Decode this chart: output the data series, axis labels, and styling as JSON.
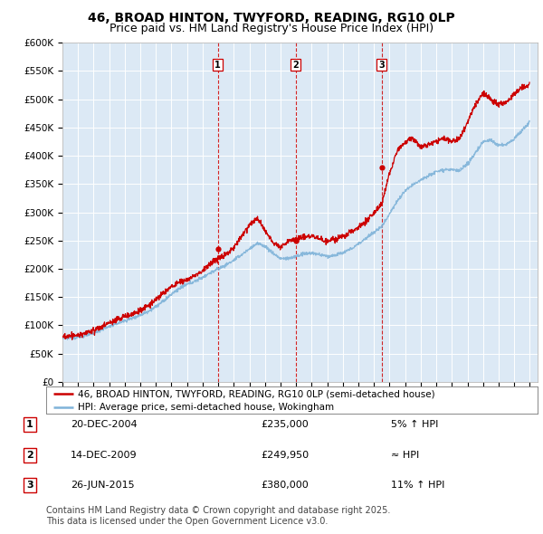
{
  "title": "46, BROAD HINTON, TWYFORD, READING, RG10 0LP",
  "subtitle": "Price paid vs. HM Land Registry's House Price Index (HPI)",
  "property_label": "46, BROAD HINTON, TWYFORD, READING, RG10 0LP (semi-detached house)",
  "hpi_label": "HPI: Average price, semi-detached house, Wokingham",
  "transactions": [
    {
      "num": 1,
      "date": "20-DEC-2004",
      "price": "£235,000",
      "vs_hpi": "5% ↑ HPI",
      "year": 2004.97
    },
    {
      "num": 2,
      "date": "14-DEC-2009",
      "price": "£249,950",
      "vs_hpi": "≈ HPI",
      "year": 2009.97
    },
    {
      "num": 3,
      "date": "26-JUN-2015",
      "price": "£380,000",
      "vs_hpi": "11% ↑ HPI",
      "year": 2015.49
    }
  ],
  "footnote": "Contains HM Land Registry data © Crown copyright and database right 2025.\nThis data is licensed under the Open Government Licence v3.0.",
  "ylim": [
    0,
    600000
  ],
  "xlim_start": 1995,
  "xlim_end": 2025.5,
  "plot_bg_color": "#dce9f5",
  "grid_color": "#ffffff",
  "property_line_color": "#cc0000",
  "hpi_line_color": "#7fb3d9",
  "vline_color": "#cc0000",
  "marker_color": "#cc0000",
  "title_fontsize": 10,
  "subtitle_fontsize": 9,
  "tick_fontsize": 7.5,
  "legend_fontsize": 8,
  "footer_fontsize": 7,
  "hpi_waypoints_x": [
    1995.0,
    1995.5,
    1996.0,
    1996.5,
    1997.0,
    1997.5,
    1998.0,
    1998.5,
    1999.0,
    1999.5,
    2000.0,
    2000.5,
    2001.0,
    2001.5,
    2002.0,
    2002.5,
    2003.0,
    2003.5,
    2004.0,
    2004.5,
    2005.0,
    2005.5,
    2006.0,
    2006.5,
    2007.0,
    2007.5,
    2008.0,
    2008.5,
    2009.0,
    2009.5,
    2010.0,
    2010.5,
    2011.0,
    2011.5,
    2012.0,
    2012.5,
    2013.0,
    2013.5,
    2014.0,
    2014.5,
    2015.0,
    2015.5,
    2016.0,
    2016.5,
    2017.0,
    2017.5,
    2018.0,
    2018.5,
    2019.0,
    2019.5,
    2020.0,
    2020.5,
    2021.0,
    2021.5,
    2022.0,
    2022.5,
    2023.0,
    2023.5,
    2024.0,
    2024.5,
    2025.0
  ],
  "hpi_waypoints_y": [
    77000,
    78000,
    79000,
    82000,
    86000,
    92000,
    98000,
    103000,
    108000,
    113000,
    118000,
    125000,
    133000,
    143000,
    155000,
    165000,
    172000,
    178000,
    185000,
    193000,
    200000,
    207000,
    215000,
    225000,
    235000,
    245000,
    240000,
    228000,
    218000,
    218000,
    222000,
    226000,
    228000,
    225000,
    222000,
    224000,
    228000,
    235000,
    244000,
    255000,
    264000,
    275000,
    298000,
    320000,
    338000,
    348000,
    358000,
    365000,
    372000,
    376000,
    375000,
    373000,
    385000,
    405000,
    425000,
    428000,
    418000,
    420000,
    430000,
    445000,
    460000
  ],
  "prop_waypoints_x": [
    1995.0,
    1995.5,
    1996.0,
    1996.5,
    1997.0,
    1997.5,
    1998.0,
    1998.5,
    1999.0,
    1999.5,
    2000.0,
    2000.5,
    2001.0,
    2001.5,
    2002.0,
    2002.5,
    2003.0,
    2003.5,
    2004.0,
    2004.5,
    2005.0,
    2005.5,
    2006.0,
    2006.5,
    2007.0,
    2007.5,
    2008.0,
    2008.5,
    2009.0,
    2009.5,
    2010.0,
    2010.5,
    2011.0,
    2011.5,
    2012.0,
    2012.5,
    2013.0,
    2013.5,
    2014.0,
    2014.5,
    2015.0,
    2015.5,
    2016.0,
    2016.5,
    2017.0,
    2017.5,
    2018.0,
    2018.5,
    2019.0,
    2019.5,
    2020.0,
    2020.5,
    2021.0,
    2021.5,
    2022.0,
    2022.5,
    2023.0,
    2023.5,
    2024.0,
    2024.5,
    2025.0
  ],
  "prop_waypoints_y": [
    80000,
    81000,
    82000,
    86000,
    91000,
    97000,
    104000,
    110000,
    116000,
    120000,
    126000,
    135000,
    145000,
    158000,
    168000,
    176000,
    180000,
    188000,
    196000,
    210000,
    218000,
    226000,
    238000,
    258000,
    278000,
    290000,
    268000,
    247000,
    238000,
    248000,
    253000,
    257000,
    258000,
    253000,
    250000,
    252000,
    256000,
    265000,
    273000,
    285000,
    298000,
    315000,
    370000,
    410000,
    425000,
    430000,
    415000,
    420000,
    425000,
    430000,
    425000,
    430000,
    460000,
    490000,
    510000,
    500000,
    490000,
    495000,
    510000,
    520000,
    525000
  ]
}
